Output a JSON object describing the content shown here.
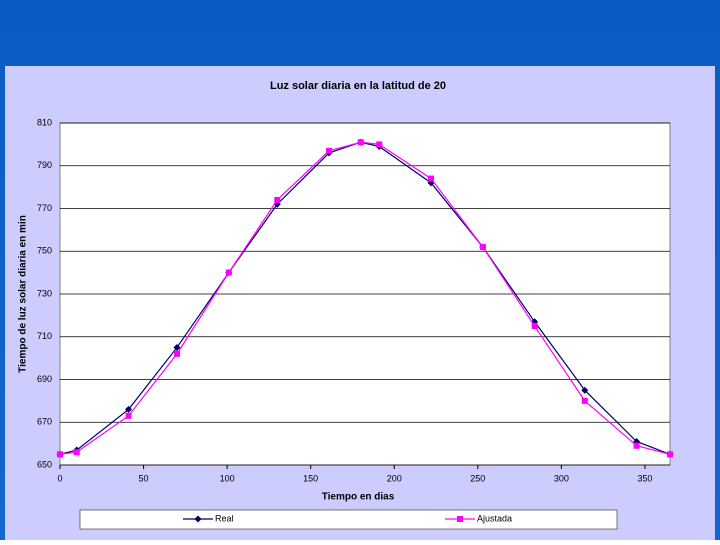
{
  "chart_data": {
    "type": "line",
    "title": "Luz solar diaria en la latitud de 20",
    "x_label": "Tiempo en dias",
    "y_label": "Tiempo de luz solar diaria en min",
    "x": [
      0,
      10,
      41,
      70,
      101,
      130,
      161,
      180,
      191,
      222,
      253,
      284,
      314,
      345,
      365
    ],
    "series": [
      {
        "name": "Real",
        "color": "#000066",
        "marker": "diamond",
        "values": [
          655,
          657,
          676,
          705,
          740,
          772,
          796,
          801,
          799,
          782,
          752,
          717,
          685,
          661,
          655
        ]
      },
      {
        "name": "Ajustada",
        "color": "#ff00ff",
        "marker": "square",
        "values": [
          655,
          656,
          673,
          702,
          740,
          774,
          797,
          801,
          800,
          784,
          752,
          715,
          680,
          659,
          655
        ]
      }
    ],
    "xlim": [
      0,
      365
    ],
    "xticks": [
      0,
      50,
      100,
      150,
      200,
      250,
      300,
      350
    ],
    "ylim": [
      650,
      810
    ],
    "yticks": [
      650,
      670,
      690,
      710,
      730,
      750,
      770,
      790,
      810
    ],
    "grid": true,
    "legend": "bottom"
  }
}
